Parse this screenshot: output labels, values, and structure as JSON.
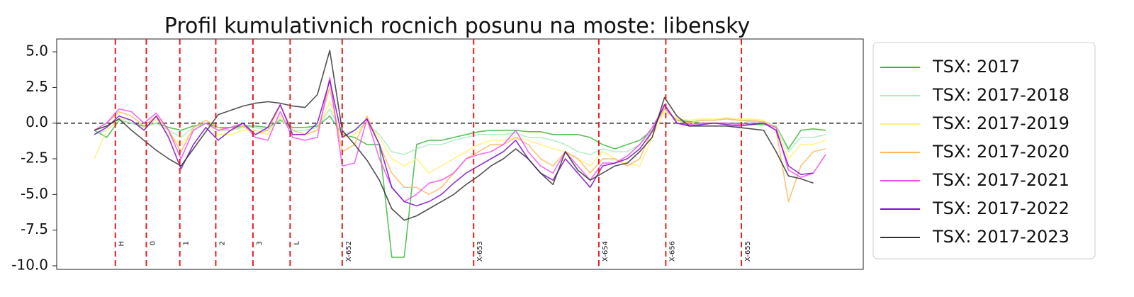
{
  "chart_data": {
    "type": "line",
    "title": "Profil kumulativnich rocnich posunu na moste: libensky",
    "categories": [
      null,
      null,
      null,
      null,
      null,
      null,
      null,
      null,
      null,
      null,
      null,
      null,
      null,
      null,
      null,
      null,
      null,
      null,
      null,
      null,
      null,
      null,
      null,
      null,
      null,
      null,
      null,
      null,
      null,
      null,
      null,
      null,
      null,
      null,
      null,
      null,
      null,
      null,
      null,
      null,
      null,
      null,
      null,
      null,
      null,
      null,
      null,
      null,
      null,
      null,
      null,
      null,
      null,
      null,
      null,
      null,
      null,
      null,
      null,
      null
    ],
    "ylim": [
      -10.25,
      5.9
    ],
    "yticks": [
      {
        "value": 5,
        "label": "5.0"
      },
      2.5,
      {
        "value": 0,
        "label": "0.0"
      },
      -2.5,
      {
        "value": -5,
        "label": "-5.0"
      },
      -7.5,
      {
        "value": -10,
        "label": "-10.0"
      }
    ],
    "zero_line": true,
    "legend": "outside-right",
    "vline_color": "#e02020",
    "vlines": [
      {
        "label": "H",
        "x": 1.7
      },
      {
        "label": "0",
        "x": 4.2
      },
      {
        "label": "1",
        "x": 6.9
      },
      {
        "label": "2",
        "x": 9.8
      },
      {
        "label": "3",
        "x": 12.8
      },
      {
        "label": "L",
        "x": 15.8
      },
      {
        "label": "X-652",
        "x": 20.0
      },
      {
        "label": "X-653",
        "x": 30.6
      },
      {
        "label": "X-654",
        "x": 40.7
      },
      {
        "label": "X-656",
        "x": 46.1
      },
      {
        "label": "X-655",
        "x": 52.2
      }
    ],
    "series": [
      {
        "name": "TSX: 2017",
        "color": "#3cb83c",
        "values": [
          -0.5,
          -1.0,
          0.2,
          0.0,
          -0.2,
          0.0,
          -0.3,
          -0.5,
          -0.2,
          0.0,
          -0.3,
          -0.3,
          -0.2,
          -0.2,
          -0.3,
          0.2,
          -0.3,
          -0.3,
          -0.2,
          0.5,
          -0.8,
          -1.0,
          -1.5,
          -1.5,
          -9.4,
          -9.4,
          -1.5,
          -1.2,
          -1.2,
          -1.0,
          -0.8,
          -0.6,
          -0.5,
          -0.5,
          -0.5,
          -0.6,
          -0.6,
          -0.8,
          -0.8,
          -0.8,
          -1.0,
          -1.5,
          -1.8,
          -1.5,
          -1.2,
          -0.5,
          1.0,
          0.2,
          0.1,
          0.0,
          0.0,
          0.0,
          0.0,
          -0.1,
          -0.1,
          -0.2,
          -1.8,
          -0.5,
          -0.4,
          -0.5
        ]
      },
      {
        "name": "TSX: 2017-2018",
        "color": "#a8ecc0",
        "values": [
          -0.8,
          -0.5,
          0.2,
          0.0,
          -0.3,
          0.0,
          -0.5,
          -1.0,
          -0.3,
          0.0,
          -0.5,
          -0.5,
          -0.3,
          -0.3,
          -0.5,
          0.3,
          -0.5,
          -0.5,
          -0.3,
          1.0,
          -0.8,
          -0.5,
          0.0,
          -0.8,
          -2.0,
          -2.2,
          -1.8,
          -1.5,
          -1.5,
          -1.2,
          -1.0,
          -0.8,
          -0.8,
          -0.8,
          -0.7,
          -1.0,
          -1.0,
          -1.2,
          -1.5,
          -2.0,
          -2.2,
          -1.8,
          -2.0,
          -2.0,
          -1.5,
          -0.5,
          1.0,
          0.3,
          0.2,
          0.2,
          0.2,
          0.3,
          0.2,
          0.1,
          0.1,
          -0.2,
          -2.0,
          -1.0,
          -1.0,
          -0.8
        ]
      },
      {
        "name": "TSX: 2017-2019",
        "color": "#fff07a",
        "values": [
          -2.5,
          -0.5,
          0.3,
          0.2,
          -0.5,
          0.3,
          -0.8,
          -1.5,
          -0.5,
          0.0,
          -0.8,
          -0.8,
          -0.5,
          -0.5,
          -0.8,
          0.5,
          -0.8,
          -0.8,
          -0.5,
          1.5,
          -1.0,
          -0.8,
          0.0,
          -1.0,
          -2.5,
          -3.0,
          -2.5,
          -3.5,
          -3.0,
          -2.5,
          -2.0,
          -1.5,
          -1.2,
          -1.2,
          -1.0,
          -1.2,
          -1.5,
          -1.8,
          -2.0,
          -2.5,
          -3.0,
          -2.0,
          -2.5,
          -2.8,
          -3.0,
          -1.0,
          0.8,
          0.3,
          0.2,
          0.3,
          0.3,
          0.4,
          0.3,
          0.3,
          0.2,
          -0.3,
          -2.5,
          -1.5,
          -1.5,
          -1.2
        ]
      },
      {
        "name": "TSX: 2017-2020",
        "color": "#ffb860",
        "values": [
          -0.5,
          0.0,
          0.8,
          0.5,
          -0.2,
          0.5,
          -0.5,
          -2.0,
          -0.3,
          0.2,
          -0.3,
          -0.5,
          -0.2,
          -0.8,
          -0.5,
          1.2,
          -0.5,
          -0.8,
          -0.5,
          2.5,
          -2.0,
          -1.5,
          0.5,
          -1.5,
          -3.5,
          -4.5,
          -4.5,
          -5.0,
          -4.5,
          -3.5,
          -2.5,
          -2.0,
          -1.5,
          -1.5,
          -1.0,
          -1.5,
          -2.5,
          -3.0,
          -2.0,
          -2.5,
          -3.5,
          -2.5,
          -2.5,
          -3.0,
          -2.5,
          -0.5,
          1.0,
          0.2,
          0.0,
          0.2,
          0.2,
          0.3,
          0.2,
          0.2,
          0.1,
          -0.5,
          -5.5,
          -3.0,
          -2.0,
          -1.8
        ]
      },
      {
        "name": "TSX: 2017-2021",
        "color": "#f050f0",
        "values": [
          -0.5,
          0.0,
          1.0,
          0.8,
          0.0,
          0.7,
          -0.5,
          -2.5,
          -0.5,
          0.0,
          -0.5,
          -0.3,
          0.0,
          -1.0,
          -1.2,
          0.8,
          -1.0,
          -1.2,
          -1.0,
          3.2,
          -3.0,
          -2.8,
          0.3,
          -2.5,
          -4.5,
          -5.5,
          -5.0,
          -4.2,
          -4.0,
          -3.5,
          -2.5,
          -2.2,
          -2.0,
          -1.5,
          -0.5,
          -2.0,
          -3.0,
          -3.5,
          -2.0,
          -3.0,
          -4.0,
          -2.8,
          -2.8,
          -2.3,
          -1.5,
          -0.3,
          1.2,
          0.0,
          -0.1,
          0.0,
          0.0,
          0.0,
          -0.1,
          0.0,
          0.0,
          -0.3,
          -3.3,
          -3.8,
          -3.5,
          -2.2
        ]
      },
      {
        "name": "TSX: 2017-2022",
        "color": "#7a10c8",
        "values": [
          -0.8,
          -0.3,
          0.5,
          0.2,
          -0.5,
          0.5,
          -1.0,
          -3.2,
          -1.5,
          -0.3,
          -1.2,
          -0.5,
          0.0,
          -0.8,
          -0.3,
          1.3,
          -0.8,
          -0.8,
          0.0,
          3.0,
          -1.0,
          -0.5,
          0.3,
          -1.5,
          -4.5,
          -5.5,
          -5.8,
          -5.5,
          -5.0,
          -4.2,
          -3.5,
          -3.0,
          -2.5,
          -2.0,
          -1.2,
          -2.5,
          -3.5,
          -4.0,
          -2.5,
          -3.5,
          -4.5,
          -3.0,
          -2.8,
          -2.5,
          -1.8,
          -0.6,
          1.3,
          0.0,
          -0.2,
          -0.1,
          0.0,
          -0.1,
          -0.2,
          -0.1,
          0.0,
          -0.5,
          -3.0,
          -3.6,
          -3.5,
          null
        ]
      },
      {
        "name": "TSX: 2017-2023",
        "color": "#333333",
        "values": [
          -0.5,
          -0.2,
          0.3,
          -0.5,
          -1.2,
          -1.9,
          -2.5,
          -3.0,
          -1.8,
          -0.6,
          0.6,
          0.9,
          1.2,
          1.4,
          1.5,
          1.4,
          1.2,
          1.1,
          2.0,
          5.1,
          -0.5,
          -1.5,
          -2.6,
          -4.0,
          -6.0,
          -6.8,
          -6.5,
          -6.0,
          -5.5,
          -5.0,
          -4.3,
          -3.7,
          -3.0,
          -2.5,
          -1.8,
          -2.5,
          -3.5,
          -4.3,
          -2.0,
          -3.3,
          -4.0,
          -3.5,
          -3.0,
          -2.8,
          -2.0,
          -1.0,
          1.8,
          0.5,
          -0.2,
          -0.2,
          -0.2,
          -0.2,
          -0.3,
          -0.4,
          -0.5,
          -2.0,
          -3.7,
          -3.9,
          -4.2,
          null
        ]
      }
    ]
  }
}
